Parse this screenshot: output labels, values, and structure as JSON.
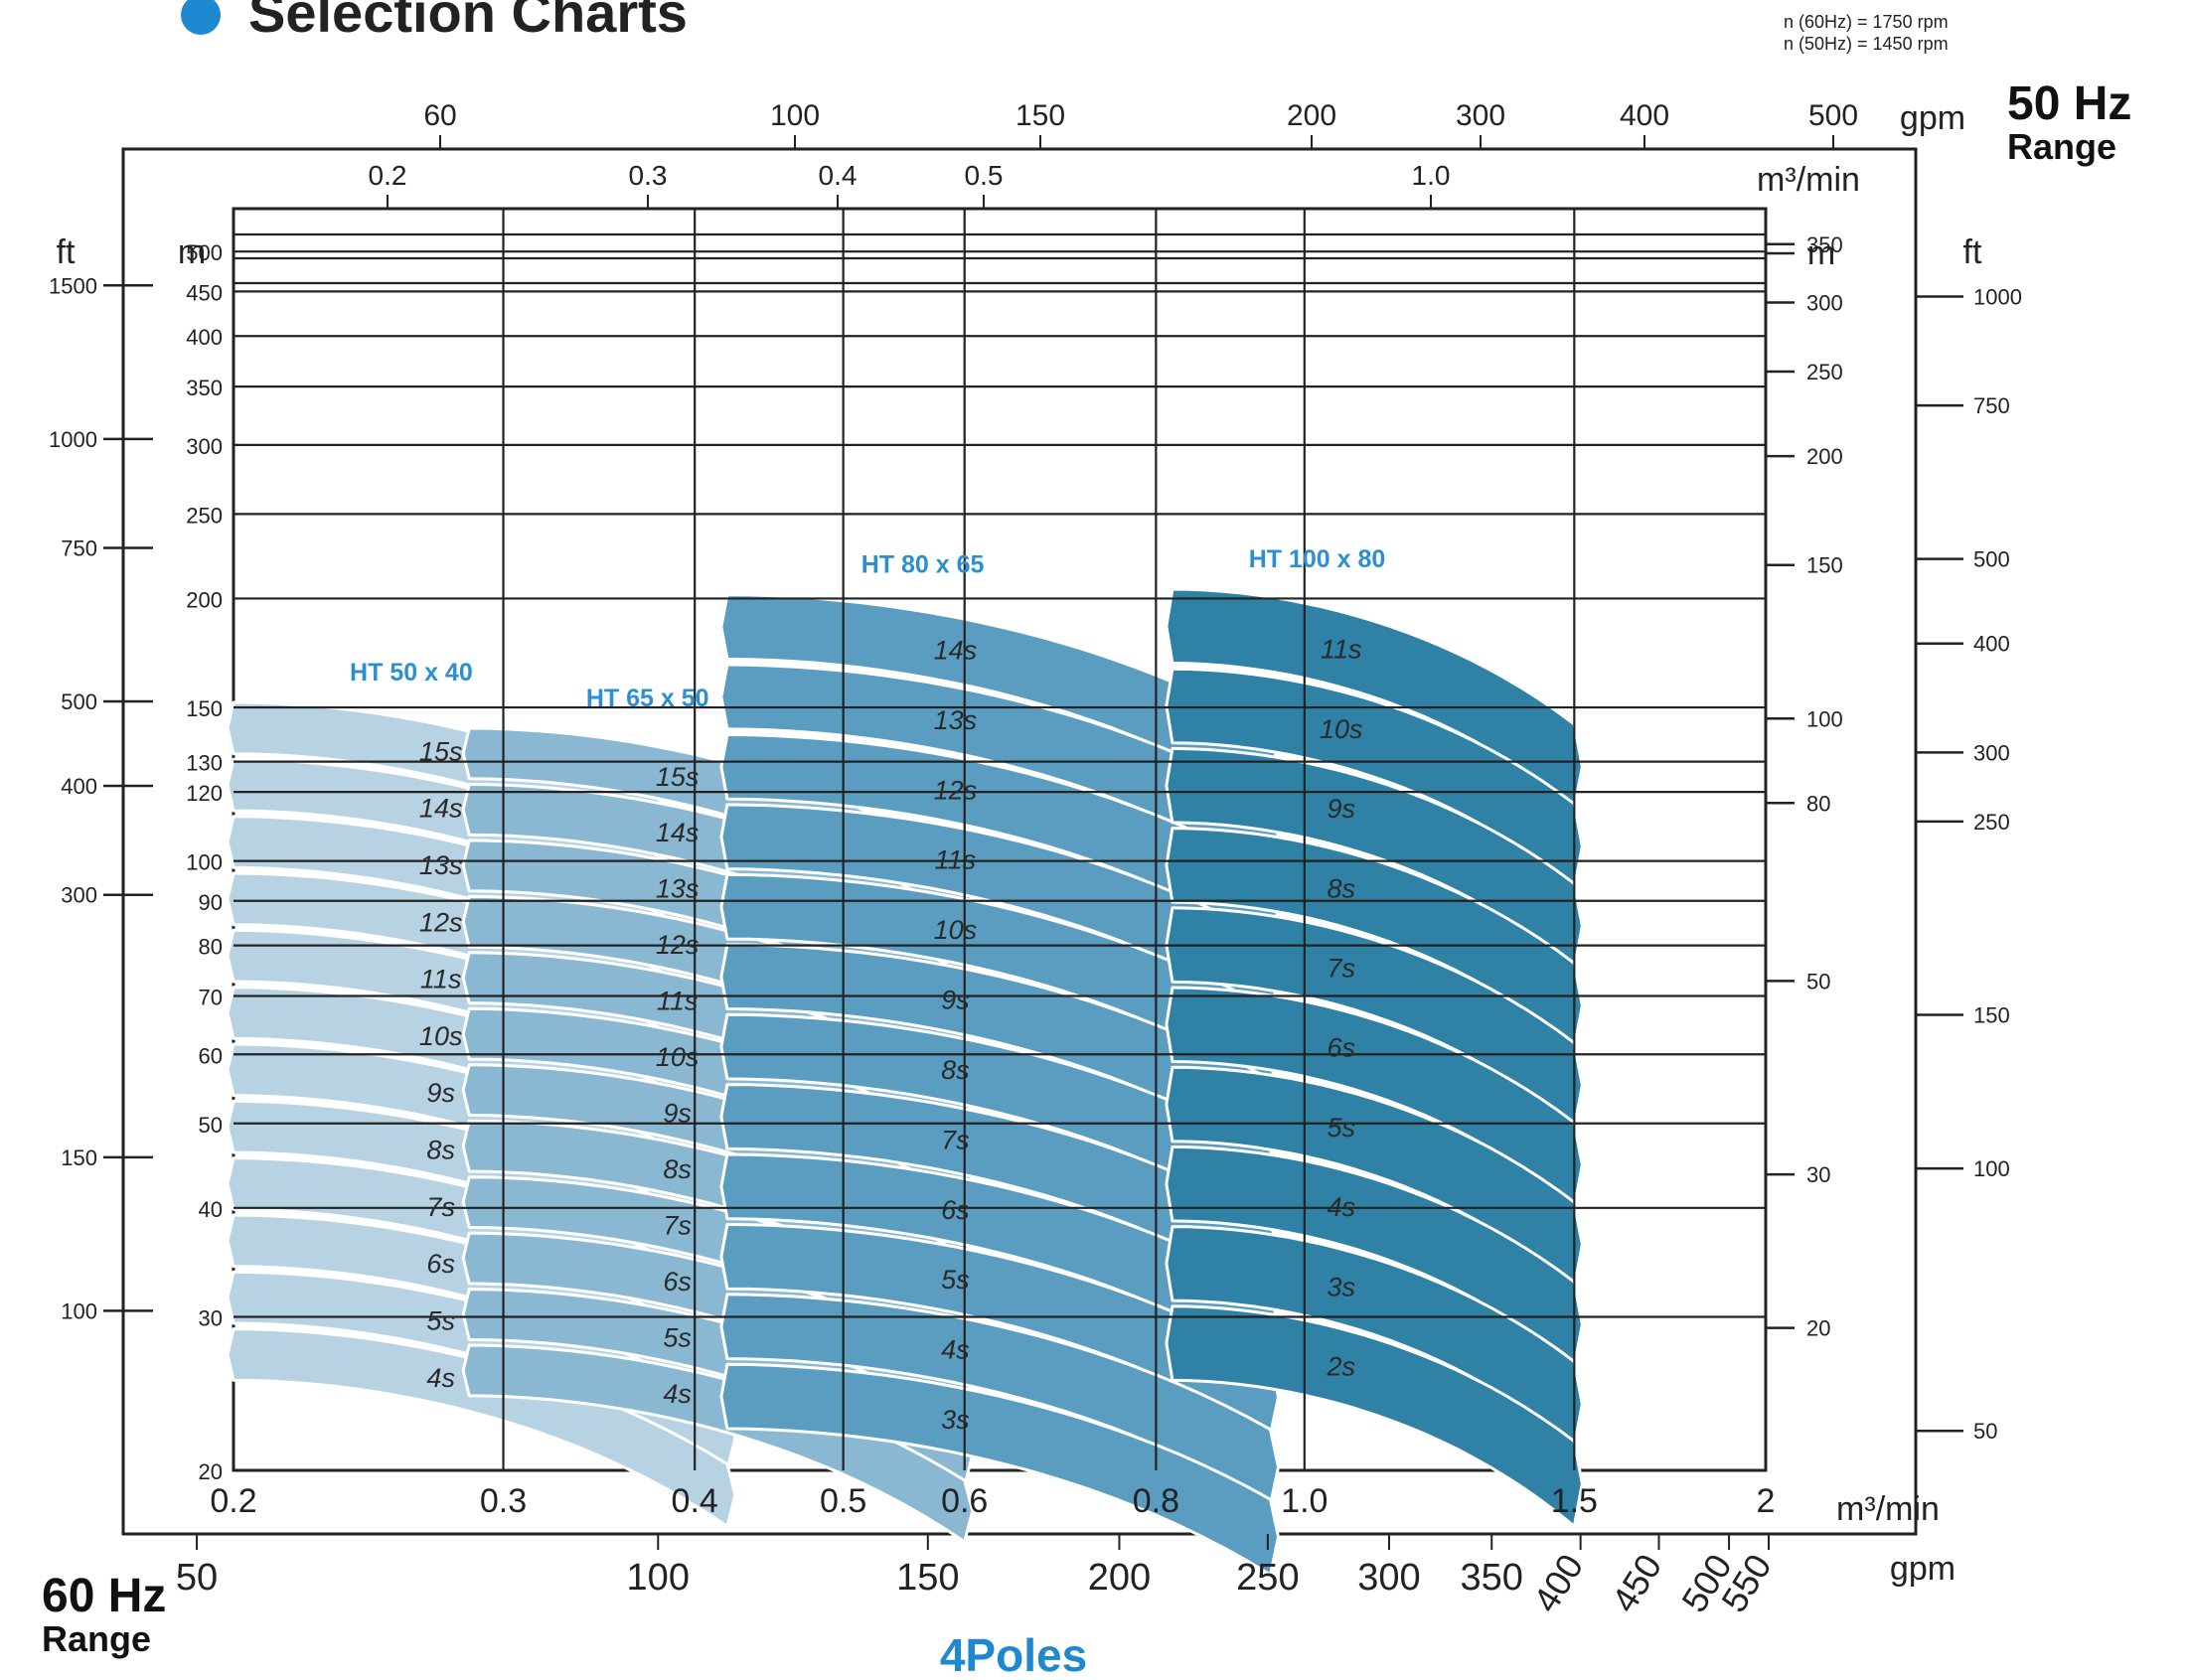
{
  "header": {
    "title": "Selection Charts",
    "speed_60": "n (60Hz) = 1750 rpm",
    "speed_50": "n (50Hz) = 1450 rpm",
    "hz50_line1": "50 Hz",
    "hz50_line2": "Range",
    "hz60_line1": "60 Hz",
    "hz60_line2": "Range",
    "footer": "4Poles",
    "accent": "#1e88d1"
  },
  "chart_data": {
    "type": "area",
    "title": "Selection Charts",
    "scale": "log-log",
    "xlim": [
      0.2,
      2.0
    ],
    "ylim": [
      20,
      560
    ],
    "axes": {
      "bottom_m3min": {
        "unit": "m³/min",
        "ticks": [
          0.2,
          0.3,
          0.4,
          0.5,
          0.6,
          0.8,
          1.0,
          1.5,
          2
        ],
        "labels": [
          "0.2",
          "0.3",
          "0.4",
          "0.5",
          "0.6",
          "0.8",
          "1.0",
          "1.5",
          "2"
        ]
      },
      "bottom_gpm": {
        "unit": "gpm",
        "labels": [
          "50",
          "100",
          "150",
          "200",
          "250",
          "300",
          "350",
          "400",
          "450",
          "500",
          "550"
        ]
      },
      "top_m3min": {
        "unit": "m³/min",
        "labels": [
          "0.2",
          "0.3",
          "0.4",
          "0.5",
          "1.0"
        ]
      },
      "top_gpm": {
        "unit": "gpm",
        "labels": [
          "60",
          "100",
          "150",
          "200",
          "300",
          "400",
          "500"
        ]
      },
      "left_m": {
        "unit": "m",
        "ticks": [
          500,
          450,
          400,
          350,
          300,
          250,
          200,
          150,
          130,
          120,
          100,
          90,
          80,
          70,
          60,
          50,
          40,
          30,
          20
        ]
      },
      "left_ft": {
        "unit": "ft",
        "labels": [
          "1500",
          "1000",
          "750",
          "500",
          "400",
          "300",
          "150",
          "100"
        ]
      },
      "right_m": {
        "unit": "m",
        "labels": [
          "350",
          "300",
          "250",
          "200",
          "150",
          "100",
          "80",
          "50",
          "30",
          "20"
        ]
      },
      "right_ft": {
        "unit": "ft",
        "labels": [
          "1000",
          "750",
          "500",
          "400",
          "300",
          "250",
          "150",
          "100",
          "50"
        ]
      }
    },
    "series": [
      {
        "name": "HT 50 x 40",
        "color": "#b7d3e3",
        "q_range": [
          0.2,
          0.42
        ],
        "top_head": 152,
        "bottom_head": 25,
        "stages": [
          "15s",
          "14s",
          "13s",
          "12s",
          "11s",
          "10s",
          "9s",
          "8s",
          "7s",
          "6s",
          "5s",
          "4s"
        ]
      },
      {
        "name": "HT 65 x 50",
        "color": "#8ab8d2",
        "q_range": [
          0.285,
          0.6
        ],
        "top_head": 142,
        "bottom_head": 24,
        "stages": [
          "15s",
          "14s",
          "13s",
          "12s",
          "11s",
          "10s",
          "9s",
          "8s",
          "7s",
          "6s",
          "5s",
          "4s"
        ]
      },
      {
        "name": "HT 80 x 65",
        "color": "#5a9dc0",
        "q_range": [
          0.42,
          0.95
        ],
        "top_head": 202,
        "bottom_head": 22,
        "stages": [
          "14s",
          "13s",
          "12s",
          "11s",
          "10s",
          "9s",
          "8s",
          "7s",
          "6s",
          "5s",
          "4s",
          "3s"
        ]
      },
      {
        "name": "HT 100 x 80",
        "color": "#2f81a5",
        "q_range": [
          0.82,
          1.5
        ],
        "top_head": 205,
        "bottom_head": 25,
        "stages": [
          "11s",
          "10s",
          "9s",
          "8s",
          "7s",
          "6s",
          "5s",
          "4s",
          "3s",
          "2s"
        ]
      }
    ]
  }
}
